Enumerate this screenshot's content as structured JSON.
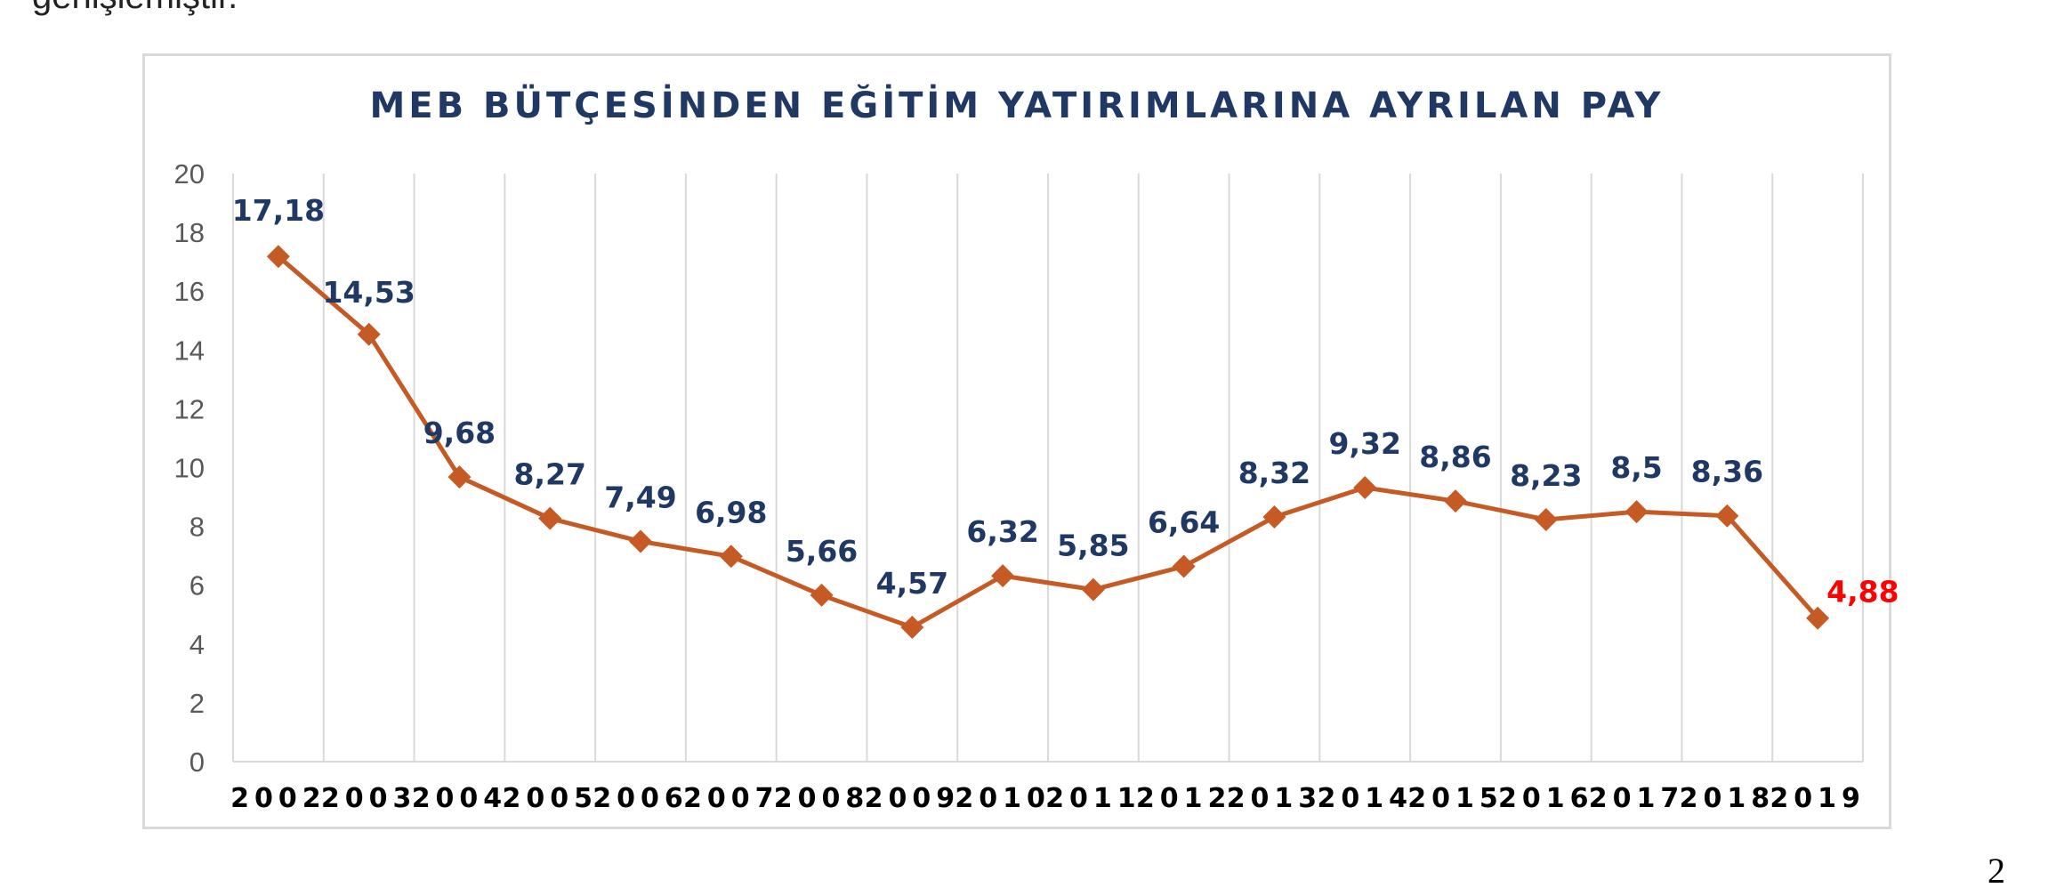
{
  "page": {
    "top_text": "genişlemiştir.",
    "page_number": "2"
  },
  "chart_data": {
    "type": "line",
    "title": "MEB BÜTÇESİNDEN EĞİTİM YATIRIMLARINA AYRILAN PAY",
    "categories": [
      "2002",
      "2003",
      "2004",
      "2005",
      "2006",
      "2007",
      "2008",
      "2009",
      "2010",
      "2011",
      "2012",
      "2013",
      "2014",
      "2015",
      "2016",
      "2017",
      "2018",
      "2019"
    ],
    "series": [
      {
        "values": [
          17.18,
          14.53,
          9.68,
          8.27,
          7.49,
          6.98,
          5.66,
          4.57,
          6.32,
          5.85,
          6.64,
          8.32,
          9.32,
          8.86,
          8.23,
          8.5,
          8.36,
          4.88
        ]
      }
    ],
    "data_labels": [
      "17,18",
      "14,53",
      "9,68",
      "8,27",
      "7,49",
      "6,98",
      "5,66",
      "4,57",
      "6,32",
      "5,85",
      "6,64",
      "8,32",
      "9,32",
      "8,86",
      "8,23",
      "8,5",
      "8,36",
      "4,88"
    ],
    "highlight_last_label": true,
    "ylim": [
      0,
      20
    ],
    "y_ticks": [
      0,
      2,
      4,
      6,
      8,
      10,
      12,
      14,
      16,
      18,
      20
    ],
    "xlabel": "",
    "ylabel": "",
    "grid": "vertical",
    "legend": "none",
    "colors": {
      "line": "#c55a24",
      "marker": "#c55a24",
      "label": "#1f3864",
      "highlight_label": "#ff0000",
      "title": "#1f3864",
      "grid": "#d9d9d9",
      "axis_text": "#595959"
    }
  }
}
